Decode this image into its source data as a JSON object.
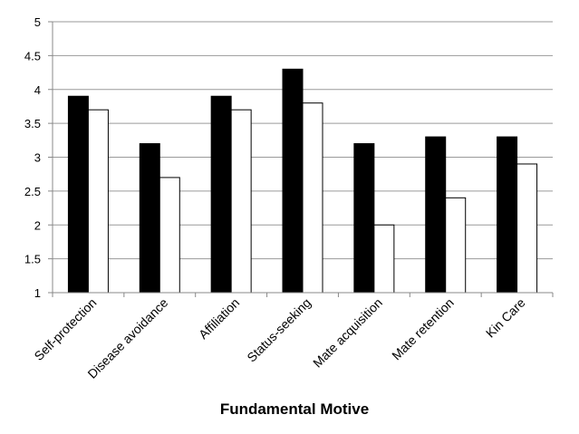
{
  "chart_data": {
    "type": "bar",
    "title": "",
    "xlabel": "Fundamental Motive",
    "ylabel": "",
    "ylim": [
      1,
      5
    ],
    "yticks": [
      "1",
      "1.5",
      "2",
      "2.5",
      "3",
      "3.5",
      "4",
      "4.5",
      "5"
    ],
    "grid": true,
    "legend": "none",
    "categories": [
      "Self-protection",
      "Disease avoidance",
      "Affiliation",
      "Status-seeking",
      "Mate acquisition",
      "Mate retention",
      "Kin Care"
    ],
    "series": [
      {
        "values": [
          3.9,
          3.2,
          3.9,
          4.3,
          3.2,
          3.3,
          3.3
        ],
        "color": "#000000"
      },
      {
        "values": [
          3.7,
          2.7,
          3.7,
          3.8,
          2.0,
          2.4,
          2.9
        ],
        "color": "#ffffff"
      }
    ]
  }
}
